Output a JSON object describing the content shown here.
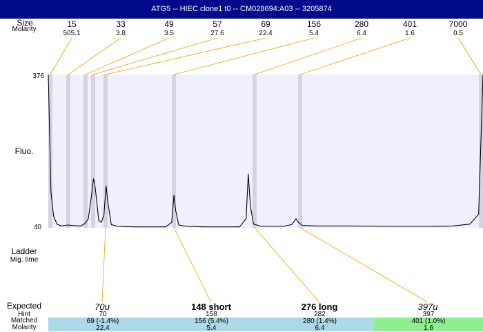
{
  "header": {
    "title": "ATG5 -- HIEC clone1 t0 -- CM028694:A03 -- 3205874"
  },
  "left_labels": {
    "size": "Size",
    "molarity": "Molarity",
    "fluo": "Fluo.",
    "ladder": "Ladder",
    "mig_time": "Mig. time",
    "expected": "Expected",
    "hint": "Hint",
    "matched": "Matched",
    "molarity_bottom": "Molarity"
  },
  "colors": {
    "title_bg": "#020a8c",
    "plot_bg": "#f0f0fc",
    "marker_band": "#d4d4e0",
    "connector": "#f0a000",
    "trace": "#000000",
    "matched_blue": "#add8e6",
    "matched_green": "#90ee90"
  },
  "chart_data": {
    "type": "line",
    "y_axis": {
      "label": "Fluo.",
      "min": 40,
      "max": 376,
      "ticks": [
        376,
        40
      ]
    },
    "ladder": [
      {
        "size": "15",
        "molarity": "505.1"
      },
      {
        "size": "33",
        "molarity": "3.8"
      },
      {
        "size": "49",
        "molarity": "3.5"
      },
      {
        "size": "57",
        "molarity": "27.6"
      },
      {
        "size": "69",
        "molarity": "22.4"
      },
      {
        "size": "156",
        "molarity": "5.4"
      },
      {
        "size": "280",
        "molarity": "6.4"
      },
      {
        "size": "401",
        "molarity": "1.6"
      },
      {
        "size": "7000",
        "molarity": "0.5"
      }
    ],
    "trace_points": [
      [
        0,
        376
      ],
      [
        0.006,
        120
      ],
      [
        0.012,
        66
      ],
      [
        0.02,
        48
      ],
      [
        0.03,
        44
      ],
      [
        0.045,
        46
      ],
      [
        0.055,
        45
      ],
      [
        0.075,
        44
      ],
      [
        0.085,
        50
      ],
      [
        0.092,
        60
      ],
      [
        0.1,
        115
      ],
      [
        0.104,
        148
      ],
      [
        0.108,
        128
      ],
      [
        0.116,
        56
      ],
      [
        0.122,
        52
      ],
      [
        0.128,
        68
      ],
      [
        0.133,
        132
      ],
      [
        0.137,
        96
      ],
      [
        0.145,
        47
      ],
      [
        0.16,
        43
      ],
      [
        0.2,
        42
      ],
      [
        0.27,
        42
      ],
      [
        0.284,
        52
      ],
      [
        0.289,
        112
      ],
      [
        0.293,
        78
      ],
      [
        0.3,
        46
      ],
      [
        0.32,
        43
      ],
      [
        0.36,
        42
      ],
      [
        0.44,
        42
      ],
      [
        0.455,
        60
      ],
      [
        0.46,
        158
      ],
      [
        0.465,
        88
      ],
      [
        0.472,
        48
      ],
      [
        0.49,
        43
      ],
      [
        0.54,
        43
      ],
      [
        0.56,
        47
      ],
      [
        0.57,
        60
      ],
      [
        0.575,
        52
      ],
      [
        0.585,
        45
      ],
      [
        0.62,
        44
      ],
      [
        0.7,
        44
      ],
      [
        0.8,
        43
      ],
      [
        0.88,
        43
      ],
      [
        0.93,
        44
      ],
      [
        0.97,
        48
      ],
      [
        0.99,
        70
      ],
      [
        1,
        376
      ]
    ],
    "peaks": [
      {
        "label": "70u",
        "expected": "70",
        "hint": "70",
        "matched": "69 (-1.4%)",
        "molarity": "22.4",
        "matched_color": "blue"
      },
      {
        "label": "148 short",
        "expected": "148",
        "hint": "158",
        "matched": "156 (5.4%)",
        "molarity": "5.4",
        "matched_color": "blue"
      },
      {
        "label": "276 long",
        "expected": "276",
        "hint": "282",
        "matched": "280 (1.4%)",
        "molarity": "6.4",
        "matched_color": "blue"
      },
      {
        "label": "397u",
        "expected": "397",
        "hint": "397",
        "matched": "401 (1.0%)",
        "molarity": "1.6",
        "matched_color": "green"
      }
    ]
  }
}
